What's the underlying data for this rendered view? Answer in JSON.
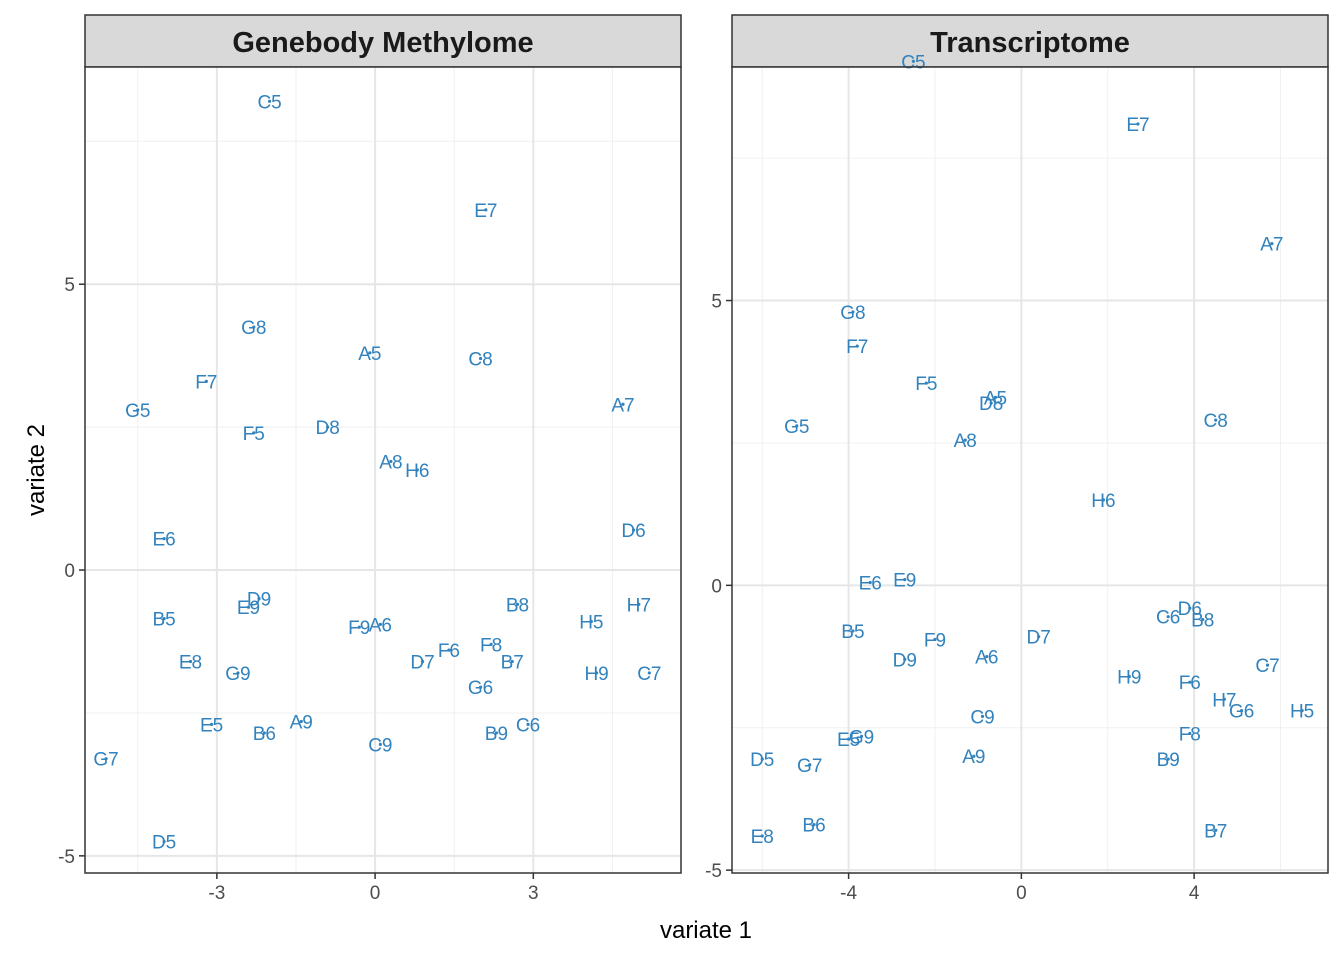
{
  "chart_data": {
    "type": "scatter",
    "xlabel": "variate 1",
    "ylabel": "variate 2",
    "point_color": "#3182bd",
    "grid": true,
    "panels": [
      {
        "title": "Genebody Methylome",
        "xlim": [
          -5.5,
          5.8
        ],
        "ylim": [
          -5.3,
          8.8
        ],
        "xticks": [
          -3,
          0,
          3
        ],
        "xtick_labels": [
          "-3",
          "0",
          "3"
        ],
        "yticks": [
          -5,
          0,
          5
        ],
        "ytick_labels": [
          "-5",
          "0",
          "5"
        ],
        "points": [
          {
            "label": "C5",
            "x": -2.0,
            "y": 8.2
          },
          {
            "label": "E7",
            "x": 2.1,
            "y": 6.3
          },
          {
            "label": "G8",
            "x": -2.3,
            "y": 4.25
          },
          {
            "label": "A5",
            "x": -0.1,
            "y": 3.8
          },
          {
            "label": "C8",
            "x": 2.0,
            "y": 3.7
          },
          {
            "label": "F7",
            "x": -3.2,
            "y": 3.3
          },
          {
            "label": "A7",
            "x": 4.7,
            "y": 2.9
          },
          {
            "label": "G5",
            "x": -4.5,
            "y": 2.8
          },
          {
            "label": "F5",
            "x": -2.3,
            "y": 2.4
          },
          {
            "label": "D8",
            "x": -0.9,
            "y": 2.5
          },
          {
            "label": "A8",
            "x": 0.3,
            "y": 1.9
          },
          {
            "label": "H6",
            "x": 0.8,
            "y": 1.75
          },
          {
            "label": "D6",
            "x": 4.9,
            "y": 0.7
          },
          {
            "label": "E6",
            "x": -4.0,
            "y": 0.55
          },
          {
            "label": "D9",
            "x": -2.2,
            "y": -0.5
          },
          {
            "label": "E9",
            "x": -2.4,
            "y": -0.65
          },
          {
            "label": "B8",
            "x": 2.7,
            "y": -0.6
          },
          {
            "label": "H7",
            "x": 5.0,
            "y": -0.6
          },
          {
            "label": "B5",
            "x": -4.0,
            "y": -0.85
          },
          {
            "label": "H5",
            "x": 4.1,
            "y": -0.9
          },
          {
            "label": "F9",
            "x": -0.3,
            "y": -1.0
          },
          {
            "label": "A6",
            "x": 0.1,
            "y": -0.95
          },
          {
            "label": "F8",
            "x": 2.2,
            "y": -1.3
          },
          {
            "label": "F6",
            "x": 1.4,
            "y": -1.4
          },
          {
            "label": "D7",
            "x": 0.9,
            "y": -1.6
          },
          {
            "label": "B7",
            "x": 2.6,
            "y": -1.6
          },
          {
            "label": "E8",
            "x": -3.5,
            "y": -1.6
          },
          {
            "label": "G9",
            "x": -2.6,
            "y": -1.8
          },
          {
            "label": "H9",
            "x": 4.2,
            "y": -1.8
          },
          {
            "label": "C7",
            "x": 5.2,
            "y": -1.8
          },
          {
            "label": "G6",
            "x": 2.0,
            "y": -2.05
          },
          {
            "label": "E5",
            "x": -3.1,
            "y": -2.7
          },
          {
            "label": "A9",
            "x": -1.4,
            "y": -2.65
          },
          {
            "label": "C6",
            "x": 2.9,
            "y": -2.7
          },
          {
            "label": "B6",
            "x": -2.1,
            "y": -2.85
          },
          {
            "label": "B9",
            "x": 2.3,
            "y": -2.85
          },
          {
            "label": "C9",
            "x": 0.1,
            "y": -3.05
          },
          {
            "label": "G7",
            "x": -5.1,
            "y": -3.3
          },
          {
            "label": "D5",
            "x": -4.0,
            "y": -4.75
          }
        ]
      },
      {
        "title": "Transcriptome",
        "xlim": [
          -6.7,
          7.1
        ],
        "ylim": [
          -5.05,
          9.1
        ],
        "xticks": [
          -4,
          0,
          4
        ],
        "xtick_labels": [
          "-4",
          "0",
          "4"
        ],
        "yticks": [
          -5,
          0,
          5
        ],
        "ytick_labels": [
          "-5",
          "0",
          "5"
        ],
        "points": [
          {
            "label": "C5",
            "x": -2.5,
            "y": 9.2
          },
          {
            "label": "E7",
            "x": 2.7,
            "y": 8.1
          },
          {
            "label": "A7",
            "x": 5.8,
            "y": 6.0
          },
          {
            "label": "G8",
            "x": -3.9,
            "y": 4.8
          },
          {
            "label": "F7",
            "x": -3.8,
            "y": 4.2
          },
          {
            "label": "F5",
            "x": -2.2,
            "y": 3.55
          },
          {
            "label": "A5",
            "x": -0.6,
            "y": 3.3
          },
          {
            "label": "D8",
            "x": -0.7,
            "y": 3.2
          },
          {
            "label": "C8",
            "x": 4.5,
            "y": 2.9
          },
          {
            "label": "G5",
            "x": -5.2,
            "y": 2.8
          },
          {
            "label": "A8",
            "x": -1.3,
            "y": 2.55
          },
          {
            "label": "H6",
            "x": 1.9,
            "y": 1.5
          },
          {
            "label": "E9",
            "x": -2.7,
            "y": 0.1
          },
          {
            "label": "E6",
            "x": -3.5,
            "y": 0.05
          },
          {
            "label": "D6",
            "x": 3.9,
            "y": -0.4
          },
          {
            "label": "C6",
            "x": 3.4,
            "y": -0.55
          },
          {
            "label": "B8",
            "x": 4.2,
            "y": -0.6
          },
          {
            "label": "B5",
            "x": -3.9,
            "y": -0.8
          },
          {
            "label": "F9",
            "x": -2.0,
            "y": -0.95
          },
          {
            "label": "D7",
            "x": 0.4,
            "y": -0.9
          },
          {
            "label": "D9",
            "x": -2.7,
            "y": -1.3
          },
          {
            "label": "A6",
            "x": -0.8,
            "y": -1.25
          },
          {
            "label": "C7",
            "x": 5.7,
            "y": -1.4
          },
          {
            "label": "H9",
            "x": 2.5,
            "y": -1.6
          },
          {
            "label": "F6",
            "x": 3.9,
            "y": -1.7
          },
          {
            "label": "H7",
            "x": 4.7,
            "y": -2.0
          },
          {
            "label": "G6",
            "x": 5.1,
            "y": -2.2
          },
          {
            "label": "H5",
            "x": 6.5,
            "y": -2.2
          },
          {
            "label": "C9",
            "x": -0.9,
            "y": -2.3
          },
          {
            "label": "F8",
            "x": 3.9,
            "y": -2.6
          },
          {
            "label": "G9",
            "x": -3.7,
            "y": -2.65
          },
          {
            "label": "E5",
            "x": -4.0,
            "y": -2.7
          },
          {
            "label": "A9",
            "x": -1.1,
            "y": -3.0
          },
          {
            "label": "B9",
            "x": 3.4,
            "y": -3.05
          },
          {
            "label": "D5",
            "x": -6.0,
            "y": -3.05
          },
          {
            "label": "G7",
            "x": -4.9,
            "y": -3.15
          },
          {
            "label": "B6",
            "x": -4.8,
            "y": -4.2
          },
          {
            "label": "B7",
            "x": 4.5,
            "y": -4.3
          },
          {
            "label": "E8",
            "x": -6.0,
            "y": -4.4
          }
        ]
      }
    ]
  }
}
